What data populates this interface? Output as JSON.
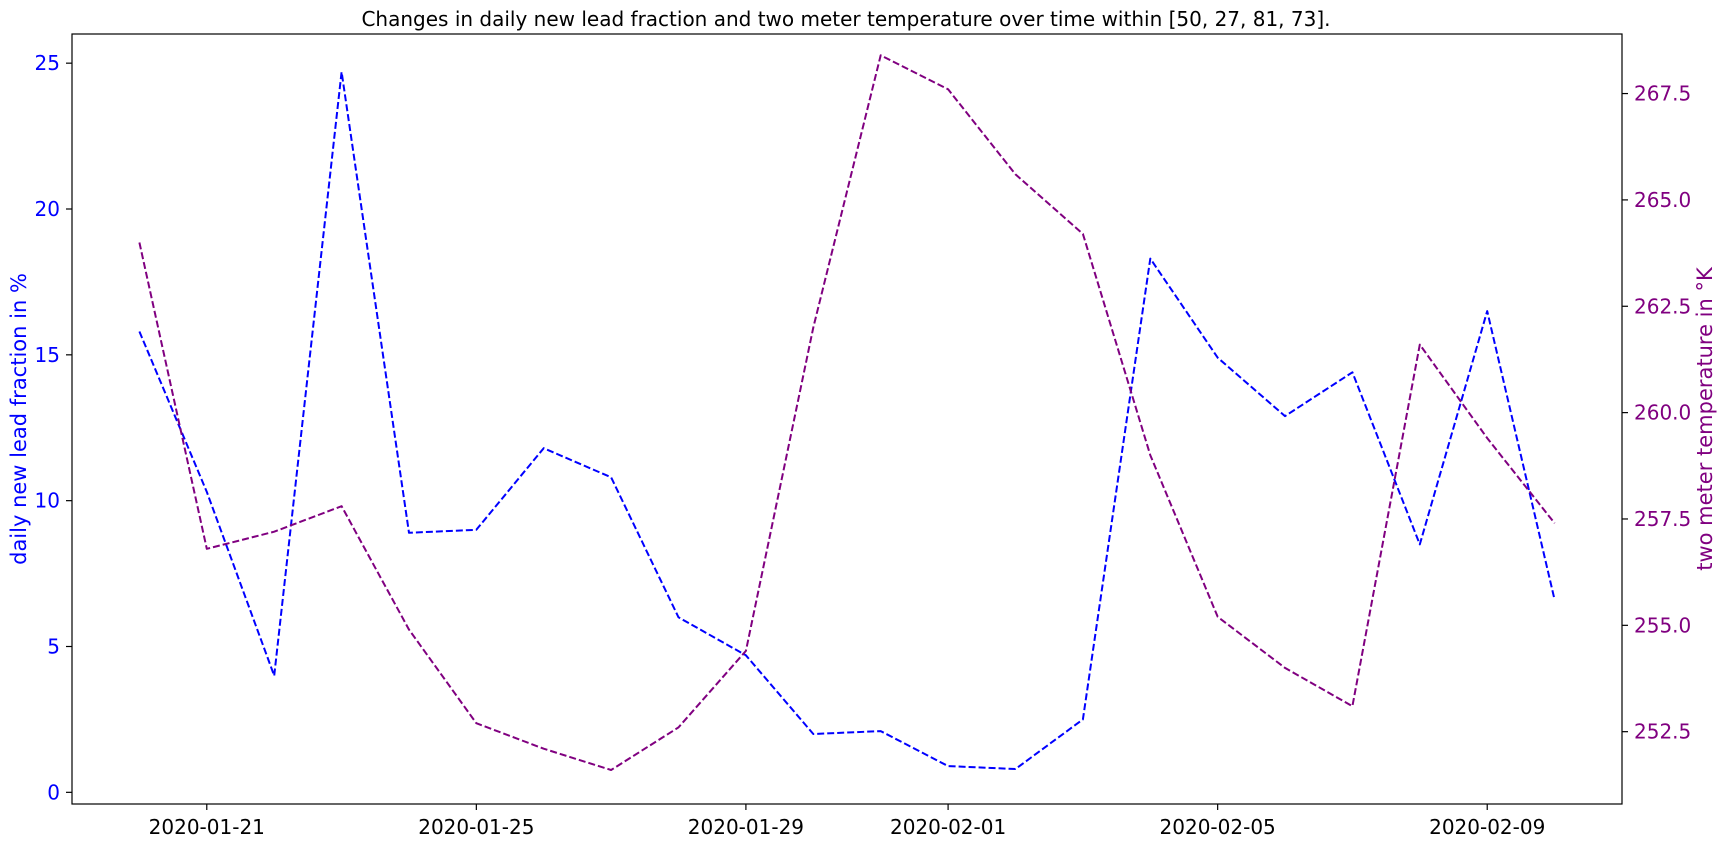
{
  "chart_data": {
    "type": "line",
    "title": "Changes in daily new lead fraction and two meter temperature over time within [50, 27, 81, 73].",
    "x": [
      "2020-01-20",
      "2020-01-21",
      "2020-01-22",
      "2020-01-23",
      "2020-01-24",
      "2020-01-25",
      "2020-01-26",
      "2020-01-27",
      "2020-01-28",
      "2020-01-29",
      "2020-01-30",
      "2020-01-31",
      "2020-02-01",
      "2020-02-02",
      "2020-02-03",
      "2020-02-04",
      "2020-02-05",
      "2020-02-06",
      "2020-02-07",
      "2020-02-08",
      "2020-02-09",
      "2020-02-10"
    ],
    "x_ticks": [
      "2020-01-21",
      "2020-01-25",
      "2020-01-29",
      "2020-02-01",
      "2020-02-05",
      "2020-02-09"
    ],
    "xlim": [
      "2020-01-19",
      "2020-02-11"
    ],
    "ylabel_left": "daily new lead fraction in %",
    "ylabel_right": "two meter temperature in °K",
    "ylim_left": [
      -0.4,
      26
    ],
    "ylim_right": [
      250.8,
      268.9
    ],
    "yticks_left": [
      0,
      5,
      10,
      15,
      20,
      25
    ],
    "yticks_left_labels": [
      "0",
      "5",
      "10",
      "15",
      "20",
      "25"
    ],
    "yticks_right": [
      252.5,
      255.0,
      257.5,
      260.0,
      262.5,
      265.0,
      267.5
    ],
    "yticks_right_labels": [
      "252.5",
      "255.0",
      "257.5",
      "260.0",
      "262.5",
      "265.0",
      "267.5"
    ],
    "grid": false,
    "legend": "none",
    "series": [
      {
        "axis": "left",
        "color": "#0000ff",
        "linestyle": "dashed",
        "values": [
          15.8,
          10.3,
          4.0,
          24.7,
          8.9,
          9.0,
          11.8,
          10.8,
          6.0,
          4.7,
          2.0,
          2.1,
          0.9,
          0.8,
          2.5,
          18.3,
          14.9,
          12.9,
          14.4,
          8.5,
          16.5,
          6.6
        ]
      },
      {
        "axis": "right",
        "color": "#800080",
        "linestyle": "dashed",
        "values": [
          264.0,
          256.8,
          257.2,
          257.8,
          254.9,
          252.7,
          252.1,
          251.6,
          252.6,
          254.4,
          262.0,
          268.4,
          267.6,
          265.6,
          264.2,
          259.0,
          255.2,
          254.0,
          253.1,
          261.6,
          259.4,
          257.4
        ]
      }
    ]
  }
}
